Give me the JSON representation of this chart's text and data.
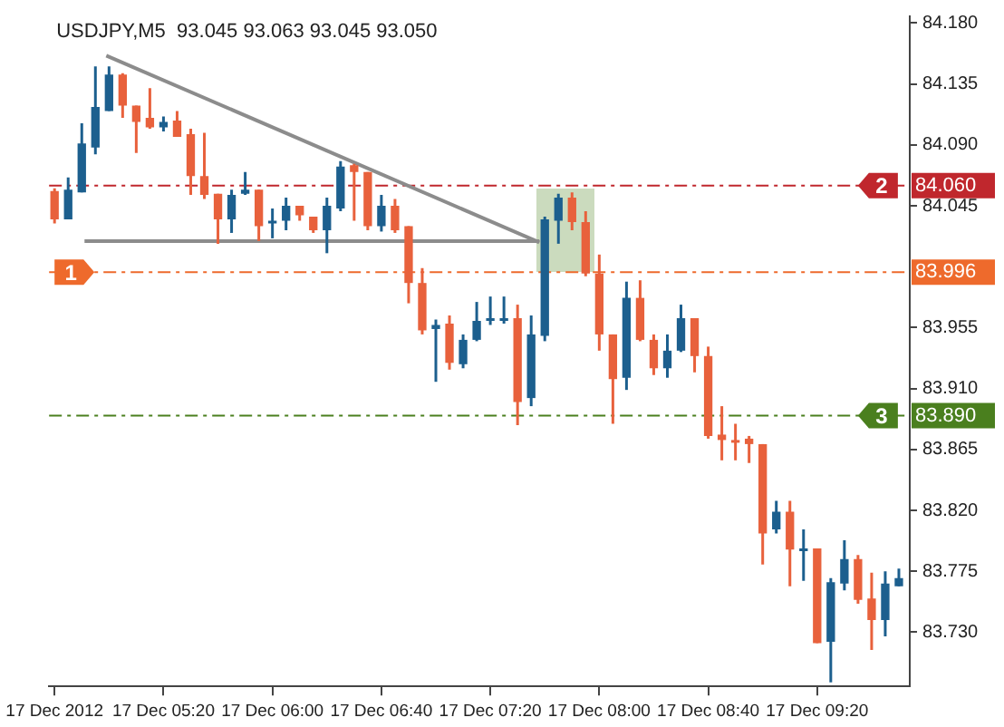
{
  "chart_data": {
    "type": "candlestick",
    "title": "USDJPY,M5  93.045 93.063 93.045 93.050",
    "x": [
      "2012-12-17T04:40",
      "2012-12-17T04:45",
      "2012-12-17T04:50",
      "2012-12-17T04:55",
      "2012-12-17T05:00",
      "2012-12-17T05:05",
      "2012-12-17T05:10",
      "2012-12-17T05:15",
      "2012-12-17T05:20",
      "2012-12-17T05:25",
      "2012-12-17T05:30",
      "2012-12-17T05:35",
      "2012-12-17T05:40",
      "2012-12-17T05:45",
      "2012-12-17T05:50",
      "2012-12-17T05:55",
      "2012-12-17T06:00",
      "2012-12-17T06:05",
      "2012-12-17T06:10",
      "2012-12-17T06:15",
      "2012-12-17T06:20",
      "2012-12-17T06:25",
      "2012-12-17T06:30",
      "2012-12-17T06:35",
      "2012-12-17T06:40",
      "2012-12-17T06:45",
      "2012-12-17T06:50",
      "2012-12-17T06:55",
      "2012-12-17T07:00",
      "2012-12-17T07:05",
      "2012-12-17T07:10",
      "2012-12-17T07:15",
      "2012-12-17T07:20",
      "2012-12-17T07:25",
      "2012-12-17T07:30",
      "2012-12-17T07:35",
      "2012-12-17T07:40",
      "2012-12-17T07:45",
      "2012-12-17T07:50",
      "2012-12-17T07:55",
      "2012-12-17T08:00",
      "2012-12-17T08:05",
      "2012-12-17T08:10",
      "2012-12-17T08:15",
      "2012-12-17T08:20",
      "2012-12-17T08:25",
      "2012-12-17T08:30",
      "2012-12-17T08:35",
      "2012-12-17T08:40",
      "2012-12-17T08:45",
      "2012-12-17T08:50",
      "2012-12-17T08:55",
      "2012-12-17T09:00",
      "2012-12-17T09:05",
      "2012-12-17T09:10",
      "2012-12-17T09:15",
      "2012-12-17T09:20",
      "2012-12-17T09:25",
      "2012-12-17T09:30",
      "2012-12-17T09:35",
      "2012-12-17T09:40",
      "2012-12-17T09:45",
      "2012-12-17T09:50"
    ],
    "ohlc": [
      [
        84.056,
        84.058,
        84.032,
        84.035
      ],
      [
        84.035,
        84.066,
        84.035,
        84.057
      ],
      [
        84.055,
        84.106,
        84.055,
        84.091
      ],
      [
        84.088,
        84.148,
        84.083,
        84.118
      ],
      [
        84.115,
        84.148,
        84.115,
        84.142
      ],
      [
        84.142,
        84.143,
        84.11,
        84.119
      ],
      [
        84.119,
        84.119,
        84.084,
        84.107
      ],
      [
        84.11,
        84.132,
        84.102,
        84.103
      ],
      [
        84.103,
        84.111,
        84.1,
        84.107
      ],
      [
        84.108,
        84.115,
        84.096,
        84.096
      ],
      [
        84.098,
        84.102,
        84.053,
        84.067
      ],
      [
        84.067,
        84.099,
        84.05,
        84.053
      ],
      [
        84.054,
        84.054,
        84.017,
        84.035
      ],
      [
        84.035,
        84.057,
        84.025,
        84.053
      ],
      [
        84.054,
        84.07,
        84.053,
        84.057
      ],
      [
        84.057,
        84.057,
        84.019,
        84.03
      ],
      [
        84.033,
        84.043,
        84.021,
        84.034
      ],
      [
        84.034,
        84.051,
        84.027,
        84.045
      ],
      [
        84.045,
        84.045,
        84.034,
        84.038
      ],
      [
        84.037,
        84.037,
        84.025,
        84.027
      ],
      [
        84.027,
        84.051,
        84.01,
        84.045
      ],
      [
        84.043,
        84.078,
        84.041,
        84.074
      ],
      [
        84.075,
        84.076,
        84.034,
        84.07
      ],
      [
        84.07,
        84.07,
        84.027,
        84.03
      ],
      [
        84.03,
        84.053,
        84.026,
        84.045
      ],
      [
        84.045,
        84.05,
        84.025,
        84.027
      ],
      [
        84.03,
        84.03,
        83.973,
        83.988
      ],
      [
        83.988,
        83.999,
        83.95,
        83.953
      ],
      [
        83.954,
        83.961,
        83.915,
        83.957
      ],
      [
        83.958,
        83.964,
        83.924,
        83.929
      ],
      [
        83.928,
        83.95,
        83.925,
        83.946
      ],
      [
        83.946,
        83.974,
        83.945,
        83.96
      ],
      [
        83.96,
        83.978,
        83.957,
        83.962
      ],
      [
        83.961,
        83.978,
        83.958,
        83.962
      ],
      [
        83.962,
        83.972,
        83.883,
        83.9
      ],
      [
        83.903,
        83.964,
        83.897,
        83.95
      ],
      [
        83.949,
        84.037,
        83.945,
        84.035
      ],
      [
        84.034,
        84.054,
        84.017,
        84.051
      ],
      [
        84.051,
        84.055,
        84.027,
        84.033
      ],
      [
        84.033,
        84.041,
        83.993,
        83.995
      ],
      [
        83.995,
        84.009,
        83.938,
        83.95
      ],
      [
        83.95,
        83.95,
        83.884,
        83.917
      ],
      [
        83.918,
        83.989,
        83.909,
        83.977
      ],
      [
        83.977,
        83.99,
        83.945,
        83.946
      ],
      [
        83.946,
        83.95,
        83.92,
        83.925
      ],
      [
        83.925,
        83.95,
        83.918,
        83.938
      ],
      [
        83.938,
        83.972,
        83.937,
        83.962
      ],
      [
        83.962,
        83.962,
        83.922,
        83.934
      ],
      [
        83.934,
        83.941,
        83.873,
        83.875
      ],
      [
        83.876,
        83.897,
        83.857,
        83.872
      ],
      [
        83.872,
        83.884,
        83.857,
        83.871
      ],
      [
        83.873,
        83.875,
        83.855,
        83.869
      ],
      [
        83.869,
        83.869,
        83.78,
        83.803
      ],
      [
        83.806,
        83.827,
        83.803,
        83.819
      ],
      [
        83.819,
        83.827,
        83.764,
        83.791
      ],
      [
        83.791,
        83.806,
        83.768,
        83.792
      ],
      [
        83.792,
        83.792,
        83.722,
        83.722
      ],
      [
        83.723,
        83.77,
        83.693,
        83.767
      ],
      [
        83.766,
        83.798,
        83.761,
        83.784
      ],
      [
        83.784,
        83.787,
        83.751,
        83.754
      ],
      [
        83.755,
        83.774,
        83.717,
        83.739
      ],
      [
        83.739,
        83.775,
        83.727,
        83.766
      ],
      [
        83.764,
        83.777,
        83.764,
        83.77
      ]
    ],
    "colors": [
      "#e8613c",
      "#1c5f8e",
      "#1c5f8e",
      "#1c5f8e",
      "#1c5f8e",
      "#e8613c",
      "#e8613c",
      "#e8613c",
      "#1c5f8e",
      "#e8613c",
      "#e8613c",
      "#e8613c",
      "#e8613c",
      "#1c5f8e",
      "#1c5f8e",
      "#e8613c",
      "#1c5f8e",
      "#1c5f8e",
      "#e8613c",
      "#e8613c",
      "#1c5f8e",
      "#1c5f8e",
      "#e8613c",
      "#e8613c",
      "#1c5f8e",
      "#e8613c",
      "#e8613c",
      "#e8613c",
      "#1c5f8e",
      "#e8613c",
      "#1c5f8e",
      "#1c5f8e",
      "#1c5f8e",
      "#1c5f8e",
      "#e8613c",
      "#1c5f8e",
      "#1c5f8e",
      "#1c5f8e",
      "#e8613c",
      "#e8613c",
      "#e8613c",
      "#e8613c",
      "#1c5f8e",
      "#e8613c",
      "#e8613c",
      "#1c5f8e",
      "#1c5f8e",
      "#e8613c",
      "#e8613c",
      "#e8613c",
      "#e8613c",
      "#e8613c",
      "#e8613c",
      "#1c5f8e",
      "#e8613c",
      "#1c5f8e",
      "#e8613c",
      "#1c5f8e",
      "#1c5f8e",
      "#e8613c",
      "#e8613c",
      "#1c5f8e",
      "#1c5f8e"
    ],
    "series": [
      {
        "type": "line",
        "color": "#8c8c8c",
        "x": [
          "2012-12-17T04:59",
          "2012-12-17T07:38"
        ],
        "values": [
          84.156,
          84.018
        ]
      },
      {
        "type": "line",
        "color": "#8c8c8c",
        "x": [
          "2012-12-17T04:51",
          "2012-12-17T07:38"
        ],
        "values": [
          84.019,
          84.019
        ]
      }
    ],
    "xlim": [
      "2012-12-17T04:38",
      "2012-12-17T09:54"
    ],
    "xticks": [
      {
        "value": "2012-12-17T04:40",
        "label": "17 Dec 2012"
      },
      {
        "value": "2012-12-17T05:20",
        "label": "17 Dec 05:20"
      },
      {
        "value": "2012-12-17T06:00",
        "label": "17 Dec 06:00"
      },
      {
        "value": "2012-12-17T06:40",
        "label": "17 Dec 06:40"
      },
      {
        "value": "2012-12-17T07:20",
        "label": "17 Dec 07:20"
      },
      {
        "value": "2012-12-17T08:00",
        "label": "17 Dec 08:00"
      },
      {
        "value": "2012-12-17T08:40",
        "label": "17 Dec 08:40"
      },
      {
        "value": "2012-12-17T09:20",
        "label": "17 Dec 09:20"
      }
    ],
    "ylim": [
      83.69,
      84.185
    ],
    "yticks": [
      {
        "value": 84.18,
        "label": "84.180"
      },
      84.135,
      {
        "value": 84.09,
        "label": "84.090"
      },
      84.045,
      83.955,
      {
        "value": 83.91,
        "label": "83.910"
      },
      83.865,
      {
        "value": 83.82,
        "label": "83.820"
      },
      83.775,
      {
        "value": 83.73,
        "label": "83.730"
      }
    ],
    "ref_lines": [
      {
        "axis": "y",
        "value": 84.06,
        "label": "84.060",
        "color": "#c0272d",
        "line_style": "dashed"
      },
      {
        "axis": "y",
        "value": 83.996,
        "label": "83.996",
        "color": "#ee6a2c",
        "line_style": "dashed"
      },
      {
        "axis": "y",
        "value": 83.89,
        "label": "83.890",
        "color": "#4a7f1e",
        "line_style": "dashed"
      }
    ],
    "annotations": [
      {
        "text": "2",
        "x": "2012-12-17T09:35",
        "y": 84.06
      },
      {
        "text": "1",
        "x": "2012-12-17T04:40",
        "y": 83.996
      },
      {
        "text": "3",
        "x": "2012-12-17T09:35",
        "y": 83.89
      }
    ],
    "grid": false,
    "legend": false,
    "marker": "none"
  }
}
